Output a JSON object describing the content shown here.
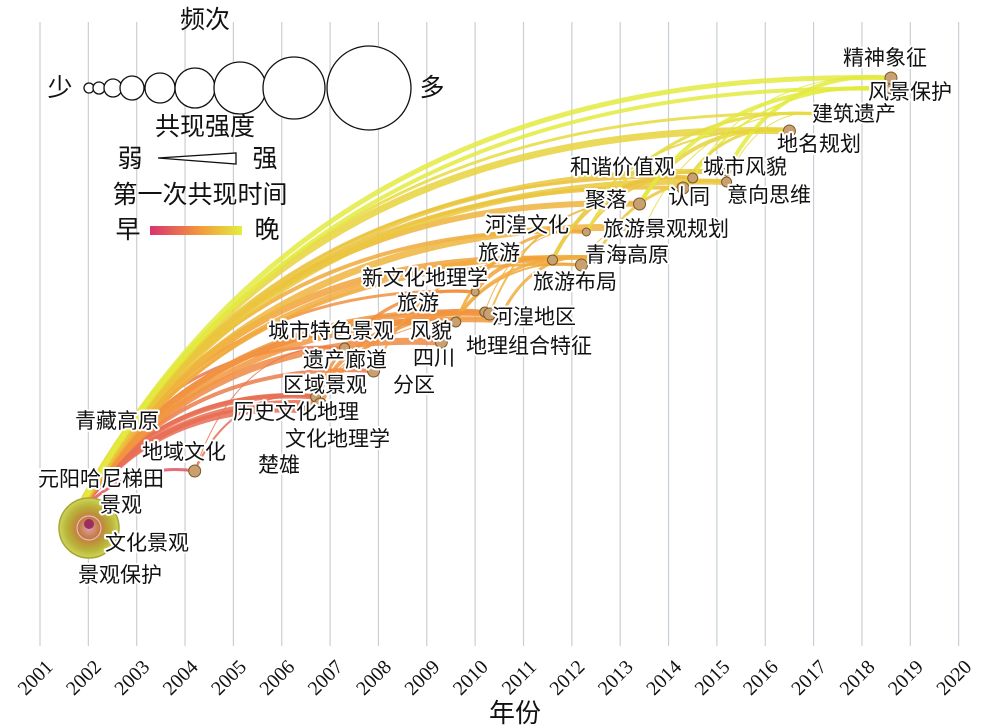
{
  "chart_data": {
    "type": "timeline-network",
    "xlabel": "年份",
    "x_ticks": [
      "2001",
      "2002",
      "2003",
      "2004",
      "2005",
      "2006",
      "2007",
      "2008",
      "2009",
      "2010",
      "2011",
      "2012",
      "2013",
      "2014",
      "2015",
      "2016",
      "2017",
      "2018",
      "2019",
      "2020"
    ],
    "legend": {
      "frequency_title": "频次",
      "frequency_low": "少",
      "frequency_high": "多",
      "strength_title": "共现强度",
      "strength_low": "弱",
      "strength_high": "强",
      "time_title": "第一次共现时间",
      "time_early": "早",
      "time_late": "晚",
      "color_early": "#d8336f",
      "color_late": "#e2ee3e"
    },
    "keywords": [
      {
        "label": "青藏高原",
        "year": 2001.6
      },
      {
        "label": "元阳哈尼梯田",
        "year": 2001.7
      },
      {
        "label": "景观",
        "year": 2001.7
      },
      {
        "label": "文化景观",
        "year": 2001.6
      },
      {
        "label": "景观保护",
        "year": 2001.6
      },
      {
        "label": "地域文化",
        "year": 2004.2
      },
      {
        "label": "区域景观",
        "year": 2006.7
      },
      {
        "label": "历史文化地理",
        "year": 2006.7
      },
      {
        "label": "文化地理学",
        "year": 2006.8
      },
      {
        "label": "楚雄",
        "year": 2006.5
      },
      {
        "label": "城市特色景观",
        "year": 2007.3
      },
      {
        "label": "遗产廊道",
        "year": 2007.9
      },
      {
        "label": "风貌",
        "year": 2009.6
      },
      {
        "label": "四川",
        "year": 2009.6
      },
      {
        "label": "分区",
        "year": 2009.3
      },
      {
        "label": "新文化地理学",
        "year": 2010.0
      },
      {
        "label": "旅游",
        "year": 2010.2
      },
      {
        "label": "河湟地区",
        "year": 2010.3
      },
      {
        "label": "地理组合特征",
        "year": 2010.5
      },
      {
        "label": "旅游",
        "year": 2011.6
      },
      {
        "label": "旅游布局",
        "year": 2012.2
      },
      {
        "label": "河湟文化",
        "year": 2012.3
      },
      {
        "label": "青海高原",
        "year": 2012.5
      },
      {
        "label": "聚落",
        "year": 2013.4
      },
      {
        "label": "旅游景观规划",
        "year": 2013.5
      },
      {
        "label": "和谐价值观",
        "year": 2014.5
      },
      {
        "label": "认同",
        "year": 2014.3
      },
      {
        "label": "城市风貌",
        "year": 2015.2
      },
      {
        "label": "意向思维",
        "year": 2015.2
      },
      {
        "label": "地名规划",
        "year": 2016.5
      },
      {
        "label": "建筑遗产",
        "year": 2017.2
      },
      {
        "label": "风景保护",
        "year": 2018.6
      },
      {
        "label": "精神象征",
        "year": 2018.6
      }
    ]
  }
}
